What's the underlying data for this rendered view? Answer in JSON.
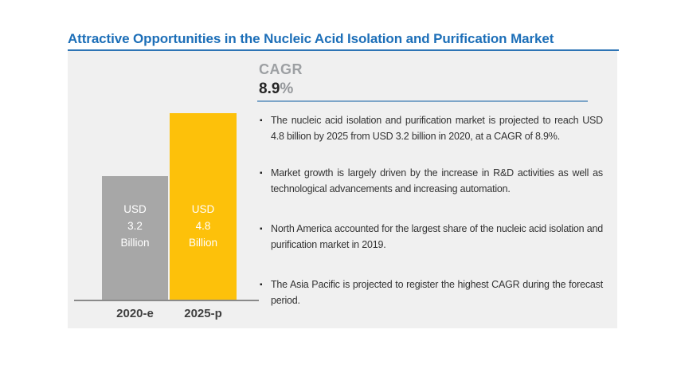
{
  "title": "Attractive Opportunities in the Nucleic Acid Isolation and Purification Market",
  "cagr": {
    "label": "CAGR",
    "value": "8.9",
    "percent": "%"
  },
  "bullets": [
    "The nucleic acid isolation and purification market is projected to reach USD 4.8 billion by 2025 from USD 3.2 billion in 2020, at a CAGR of 8.9%.",
    "Market growth is largely driven by the increase in R&D activities as well as technological advancements and increasing automation.",
    "North America accounted for the largest share of the nucleic acid isolation and purification market in 2019.",
    "The Asia Pacific is projected to register the highest CAGR during the forecast period."
  ],
  "chart_data": {
    "type": "bar",
    "title": "Attractive Opportunities in the Nucleic Acid Isolation and Purification Market",
    "categories": [
      "2020-e",
      "2025-p"
    ],
    "values": [
      3.2,
      4.8
    ],
    "unit": "USD Billion",
    "bar_labels": [
      [
        "USD",
        "3.2",
        "Billion"
      ],
      [
        "USD",
        "4.8",
        "Billion"
      ]
    ],
    "bar_colors": [
      "#a7a7a7",
      "#fdc10a"
    ],
    "cagr": "8.9%",
    "xlabel": "",
    "ylabel": "",
    "ylim": [
      0,
      4.8
    ],
    "grid": false,
    "legend": false
  },
  "colors": {
    "title_blue": "#1d6fb8",
    "underline_blue": "#2d74b5",
    "panel_gray": "#f0f0f0",
    "divider_blue": "#7ca5c8",
    "axis_gray": "#8a8a8a",
    "text_dark": "#333333",
    "cagr_gray": "#9da0a3"
  }
}
